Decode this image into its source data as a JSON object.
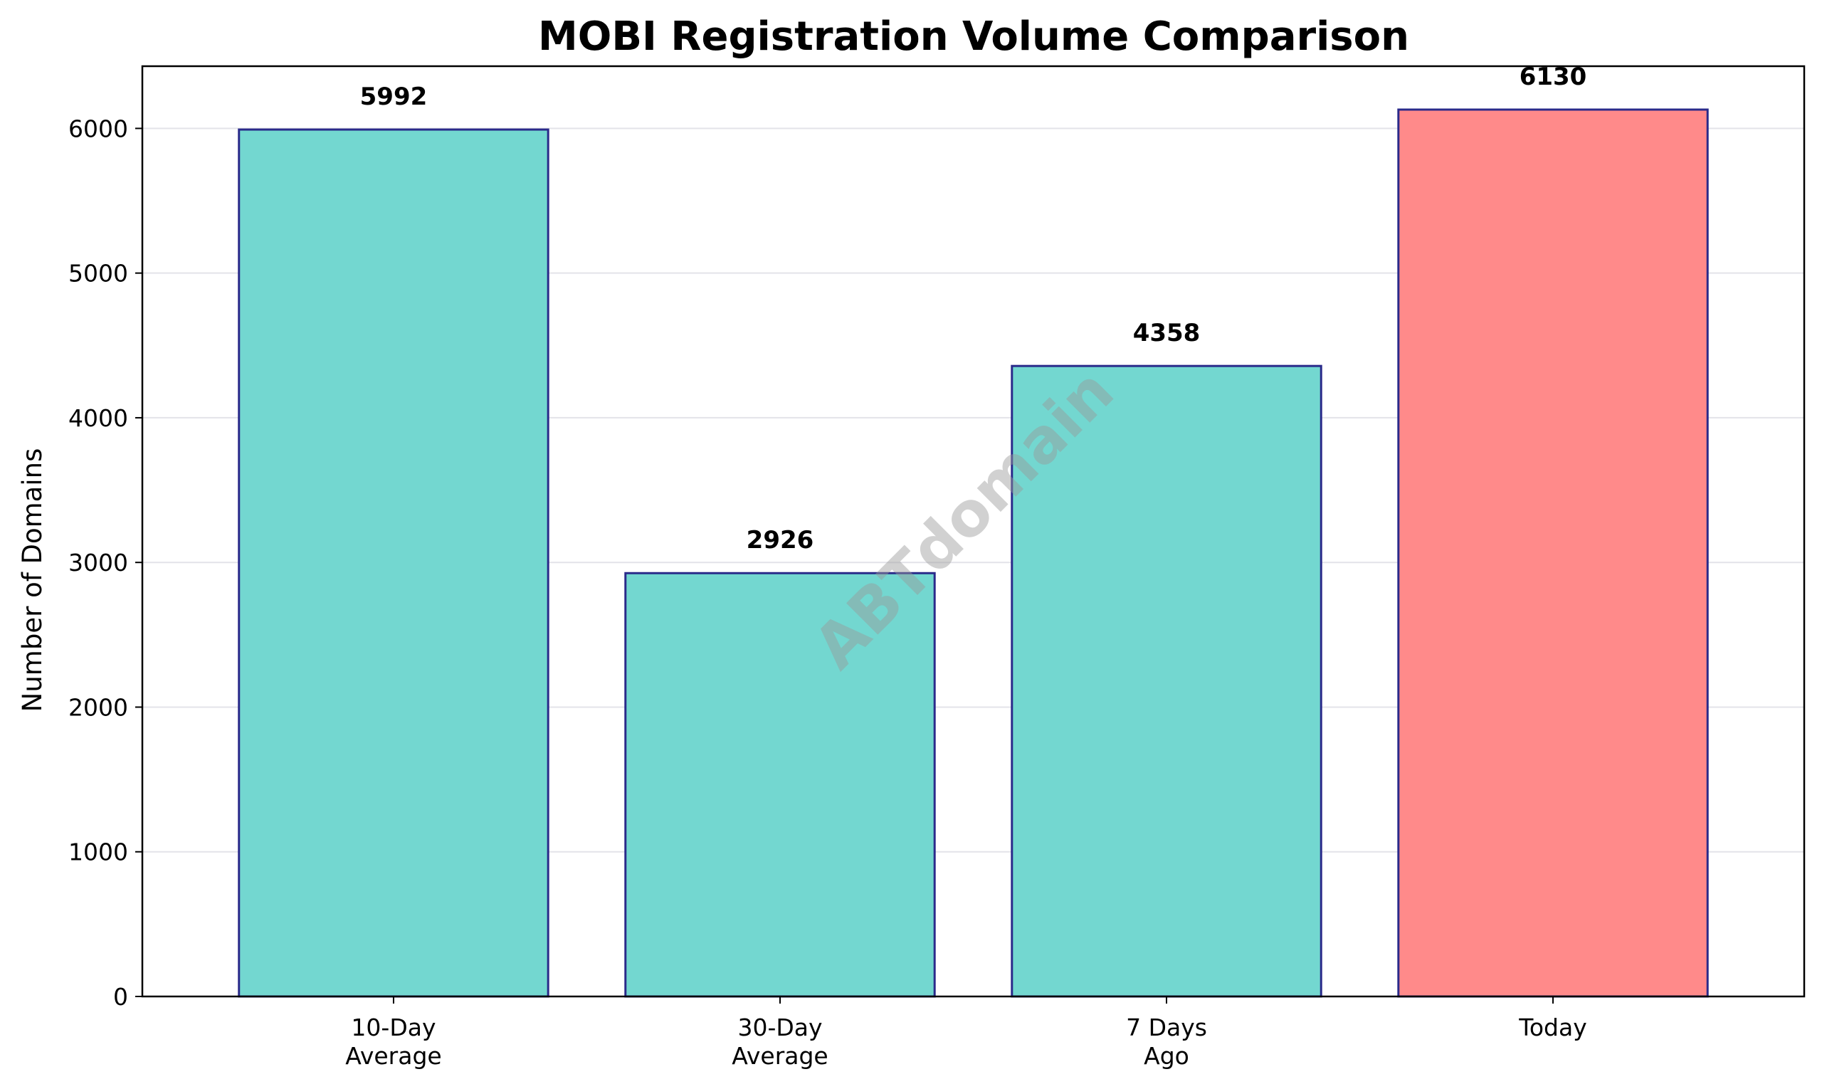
{
  "chart_data": {
    "type": "bar",
    "title": "MOBI Registration Volume Comparison",
    "xlabel": "",
    "ylabel": "Number of Domains",
    "categories": [
      [
        "10-Day",
        "Average"
      ],
      [
        "30-Day",
        "Average"
      ],
      [
        "7 Days",
        "Ago"
      ],
      [
        "Today"
      ]
    ],
    "values": [
      5992,
      2926,
      4358,
      6130
    ],
    "value_labels": [
      "5992",
      "2926",
      "4358",
      "6130"
    ],
    "ylim": [
      0,
      6430
    ],
    "yticks": [
      0,
      1000,
      2000,
      3000,
      4000,
      5000,
      6000
    ],
    "ytick_labels": [
      "0",
      "1000",
      "2000",
      "3000",
      "4000",
      "5000",
      "6000"
    ],
    "grid": "horizontal",
    "colors": {
      "bar": "#73d7d0",
      "highlight": "#ff8a8a",
      "edge": "#2a2a8a",
      "grid": "#e3e3e9"
    },
    "highlight_index": 3,
    "watermark": "ABTdomain"
  }
}
